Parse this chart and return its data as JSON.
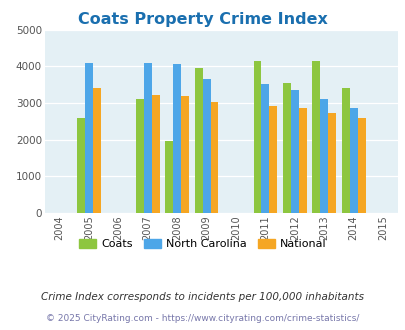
{
  "title": "Coats Property Crime Index",
  "title_color": "#1a6faf",
  "years": [
    2005,
    2007,
    2008,
    2009,
    2011,
    2012,
    2013,
    2014
  ],
  "coats": [
    2600,
    3100,
    1950,
    3950,
    4150,
    3550,
    4150,
    3400
  ],
  "nc": [
    4080,
    4080,
    4050,
    3650,
    3530,
    3350,
    3100,
    2870
  ],
  "national": [
    3420,
    3230,
    3200,
    3030,
    2910,
    2870,
    2720,
    2600
  ],
  "coats_color": "#8dc63f",
  "nc_color": "#4da6e8",
  "national_color": "#f5a623",
  "bg_color": "#e4f0f5",
  "xlim": [
    2003.5,
    2015.5
  ],
  "ylim": [
    0,
    5000
  ],
  "yticks": [
    0,
    1000,
    2000,
    3000,
    4000,
    5000
  ],
  "xticks": [
    2004,
    2005,
    2006,
    2007,
    2008,
    2009,
    2010,
    2011,
    2012,
    2013,
    2014,
    2015
  ],
  "subtitle": "Crime Index corresponds to incidents per 100,000 inhabitants",
  "footer": "© 2025 CityRating.com - https://www.cityrating.com/crime-statistics/",
  "bar_width": 0.27,
  "legend_labels": [
    "Coats",
    "North Carolina",
    "National"
  ],
  "subtitle_color": "#333333",
  "footer_color": "#7777aa"
}
